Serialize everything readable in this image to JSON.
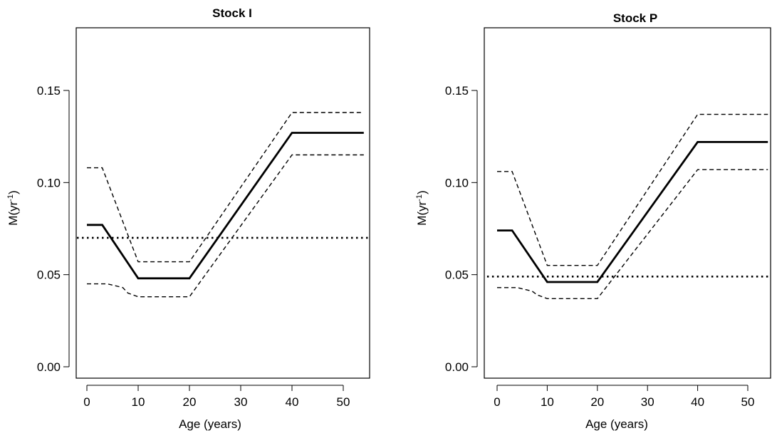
{
  "chart_data": [
    {
      "type": "line",
      "title": "Stock I",
      "xlabel": "Age (years)",
      "ylabel_main": "M(yr",
      "ylabel_sup": "-1",
      "ylabel_close": ")",
      "xlim": [
        -2,
        55
      ],
      "ylim": [
        -0.01,
        0.185
      ],
      "xticks": [
        0,
        10,
        20,
        30,
        40,
        50
      ],
      "xtick_labels": [
        "0",
        "10",
        "20",
        "30",
        "40",
        "50"
      ],
      "yticks": [
        0.0,
        0.05,
        0.1,
        0.15
      ],
      "ytick_labels": [
        "0.00",
        "0.05",
        "0.10",
        "0.15"
      ],
      "grid": false,
      "series": [
        {
          "style": "solid",
          "color": "#000000",
          "x": [
            0,
            3,
            10,
            20,
            40,
            54
          ],
          "y": [
            0.077,
            0.077,
            0.048,
            0.048,
            0.127,
            0.127
          ]
        },
        {
          "style": "dashed",
          "color": "#000000",
          "x": [
            0,
            3,
            10,
            20,
            40,
            54
          ],
          "y": [
            0.108,
            0.108,
            0.057,
            0.057,
            0.138,
            0.138
          ]
        },
        {
          "style": "dashed",
          "color": "#000000",
          "x": [
            0,
            4,
            7,
            8,
            10,
            20,
            40,
            54
          ],
          "y": [
            0.045,
            0.045,
            0.043,
            0.04,
            0.038,
            0.038,
            0.115,
            0.115
          ]
        },
        {
          "style": "dotted",
          "color": "#000000",
          "x": [
            -2,
            55
          ],
          "y": [
            0.07,
            0.07
          ]
        }
      ]
    },
    {
      "type": "line",
      "title": "Stock P",
      "xlabel": "Age (years)",
      "ylabel_main": "M(yr",
      "ylabel_sup": "-1",
      "ylabel_close": ")",
      "xlim": [
        -2,
        55
      ],
      "ylim": [
        -0.01,
        0.185
      ],
      "xticks": [
        0,
        10,
        20,
        30,
        40,
        50
      ],
      "xtick_labels": [
        "0",
        "10",
        "20",
        "30",
        "40",
        "50"
      ],
      "yticks": [
        0.0,
        0.05,
        0.1,
        0.15
      ],
      "ytick_labels": [
        "0.00",
        "0.05",
        "0.10",
        "0.15"
      ],
      "grid": false,
      "series": [
        {
          "style": "solid",
          "color": "#000000",
          "x": [
            0,
            3,
            10,
            20,
            40,
            54
          ],
          "y": [
            0.074,
            0.074,
            0.046,
            0.046,
            0.122,
            0.122
          ]
        },
        {
          "style": "dashed",
          "color": "#000000",
          "x": [
            0,
            3,
            10,
            20,
            40,
            54
          ],
          "y": [
            0.106,
            0.106,
            0.055,
            0.055,
            0.137,
            0.137
          ]
        },
        {
          "style": "dashed",
          "color": "#000000",
          "x": [
            0,
            4,
            7,
            8,
            10,
            20,
            40,
            54
          ],
          "y": [
            0.043,
            0.043,
            0.041,
            0.039,
            0.037,
            0.037,
            0.107,
            0.107
          ]
        },
        {
          "style": "dotted",
          "color": "#000000",
          "x": [
            -2,
            55
          ],
          "y": [
            0.049,
            0.049
          ]
        }
      ]
    }
  ]
}
